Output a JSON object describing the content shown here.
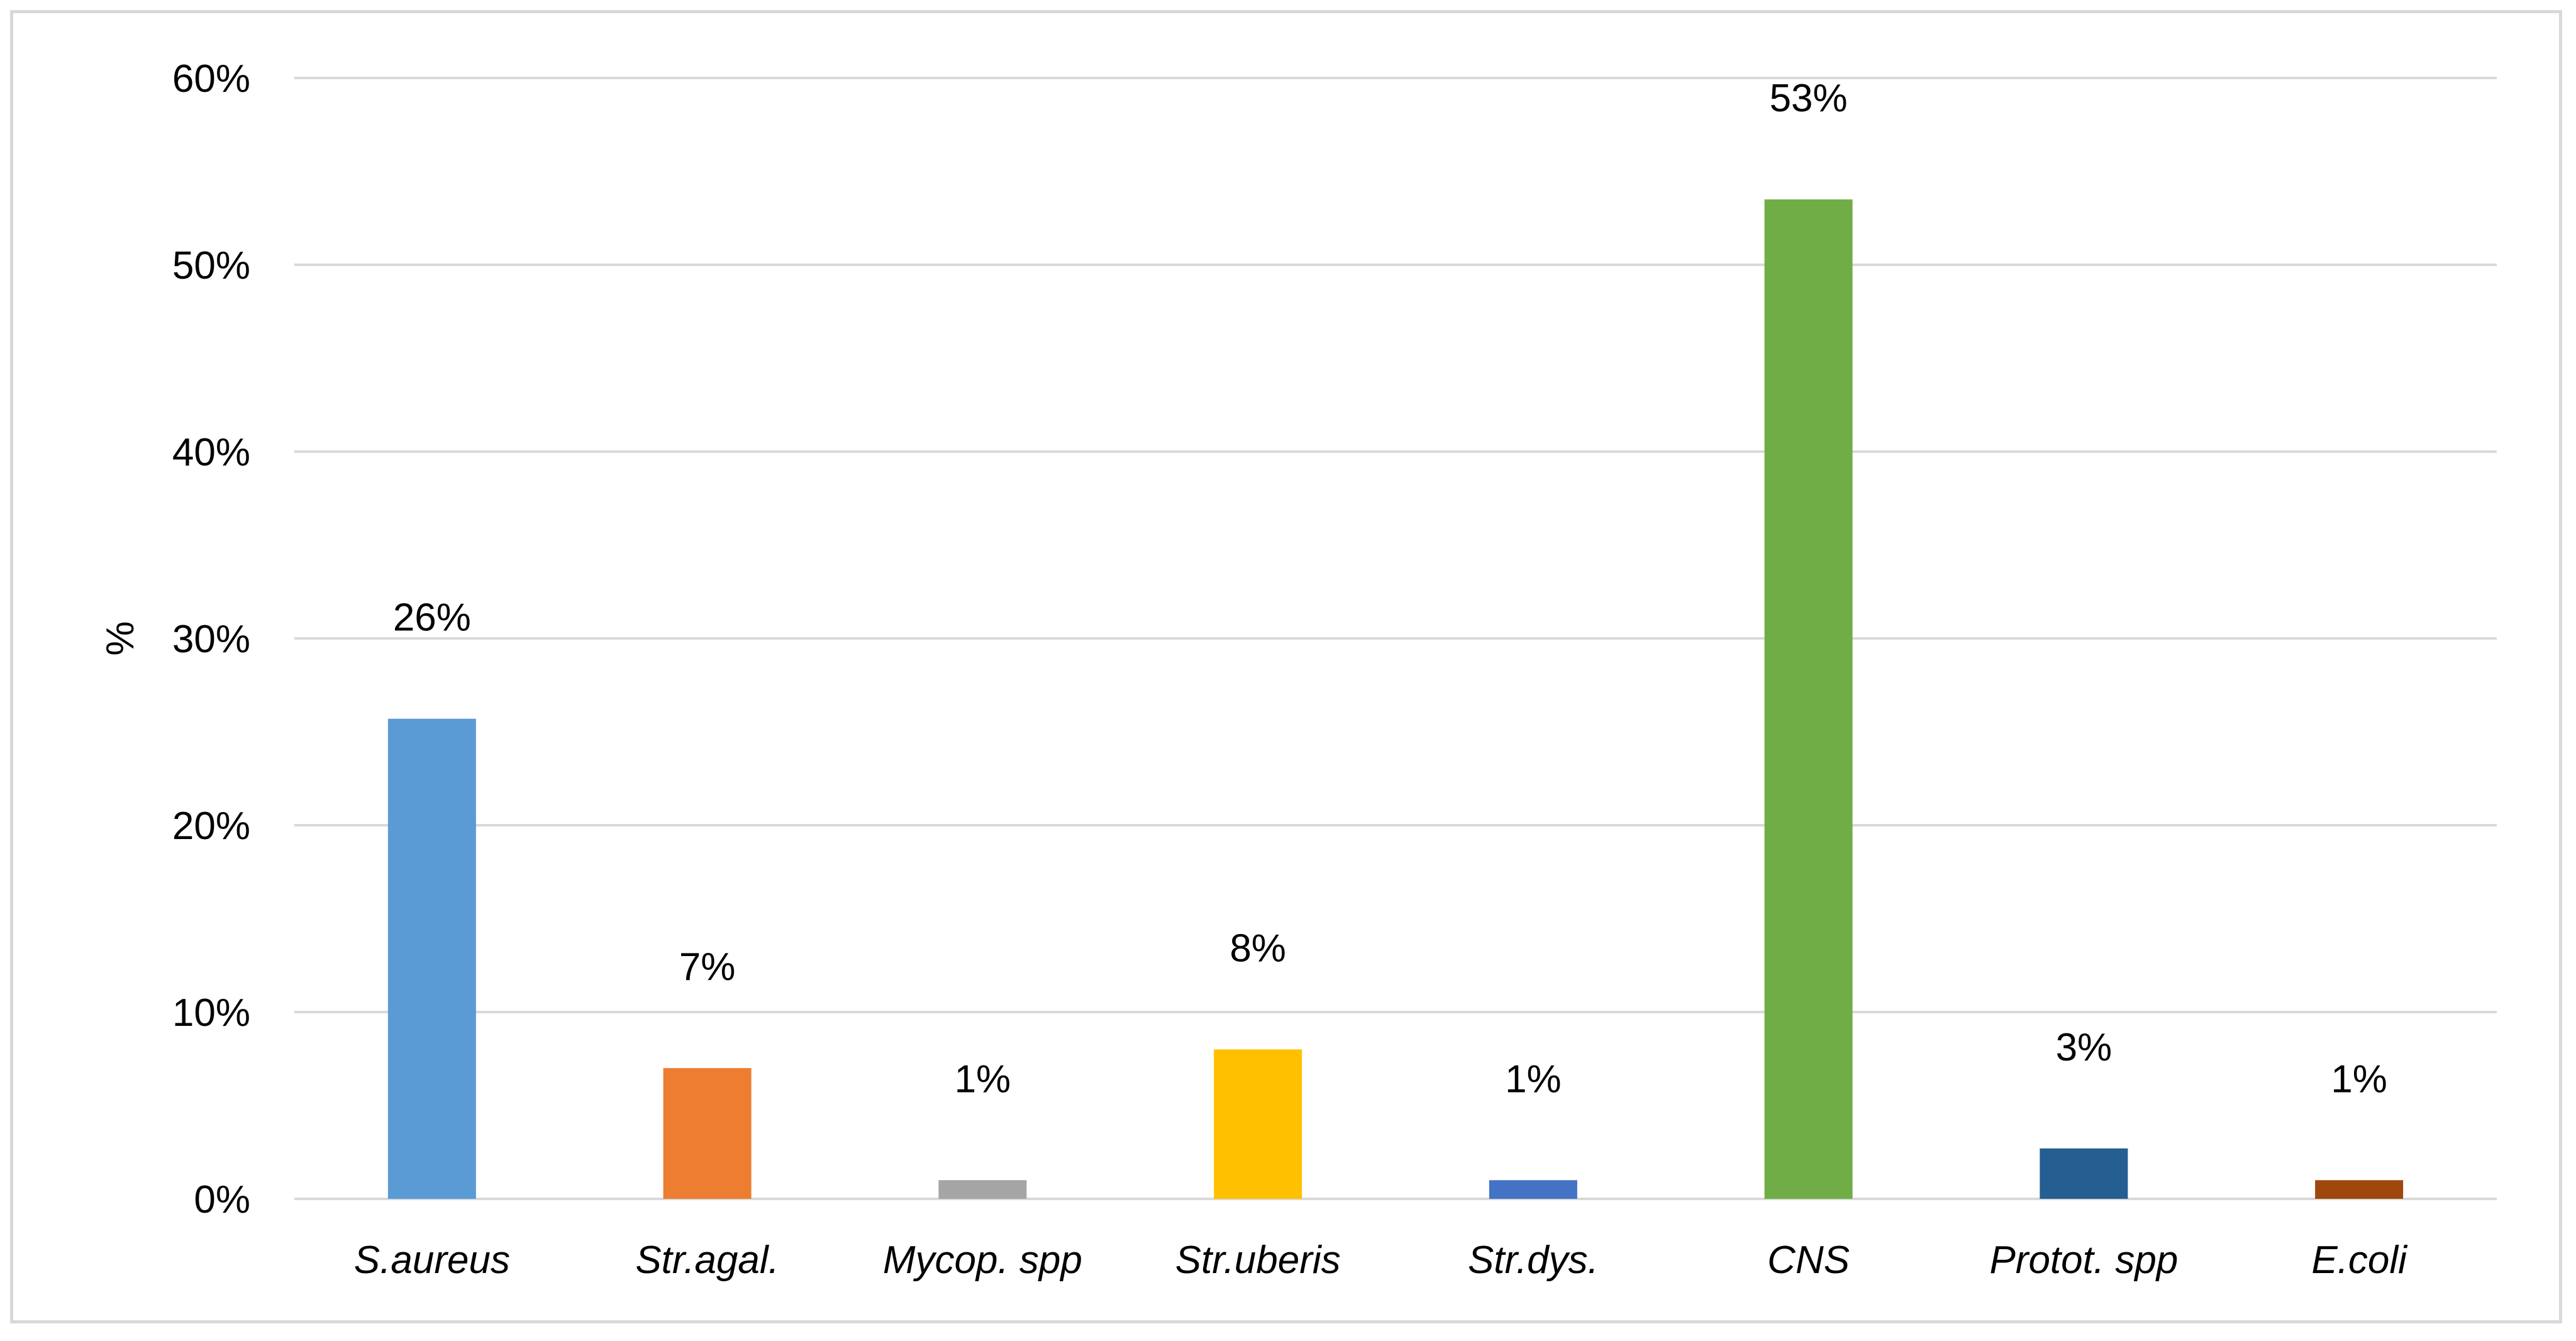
{
  "chart_data": {
    "type": "bar",
    "categories": [
      "S.aureus",
      "Str.agal.",
      "Mycop. spp",
      "Str.uberis",
      "Str.dys.",
      "CNS",
      "Protot. spp",
      "E.coli"
    ],
    "values": [
      25.7,
      7.0,
      1.0,
      8.0,
      1.0,
      53.5,
      2.7,
      1.0
    ],
    "data_labels": [
      "26%",
      "7%",
      "1%",
      "8%",
      "1%",
      "53%",
      "3%",
      "1%"
    ],
    "colors": [
      "#5b9bd5",
      "#ed7d31",
      "#a5a5a5",
      "#ffc000",
      "#4472c4",
      "#70ad47",
      "#255e91",
      "#9e480e"
    ],
    "title": "",
    "xlabel": "",
    "ylabel": "%",
    "ylim": [
      0,
      60
    ],
    "yticks": [
      0,
      10,
      20,
      30,
      40,
      50,
      60
    ],
    "ytick_labels": [
      "0%",
      "10%",
      "20%",
      "30%",
      "40%",
      "50%",
      "60%"
    ],
    "grid": true,
    "legend": "none"
  }
}
